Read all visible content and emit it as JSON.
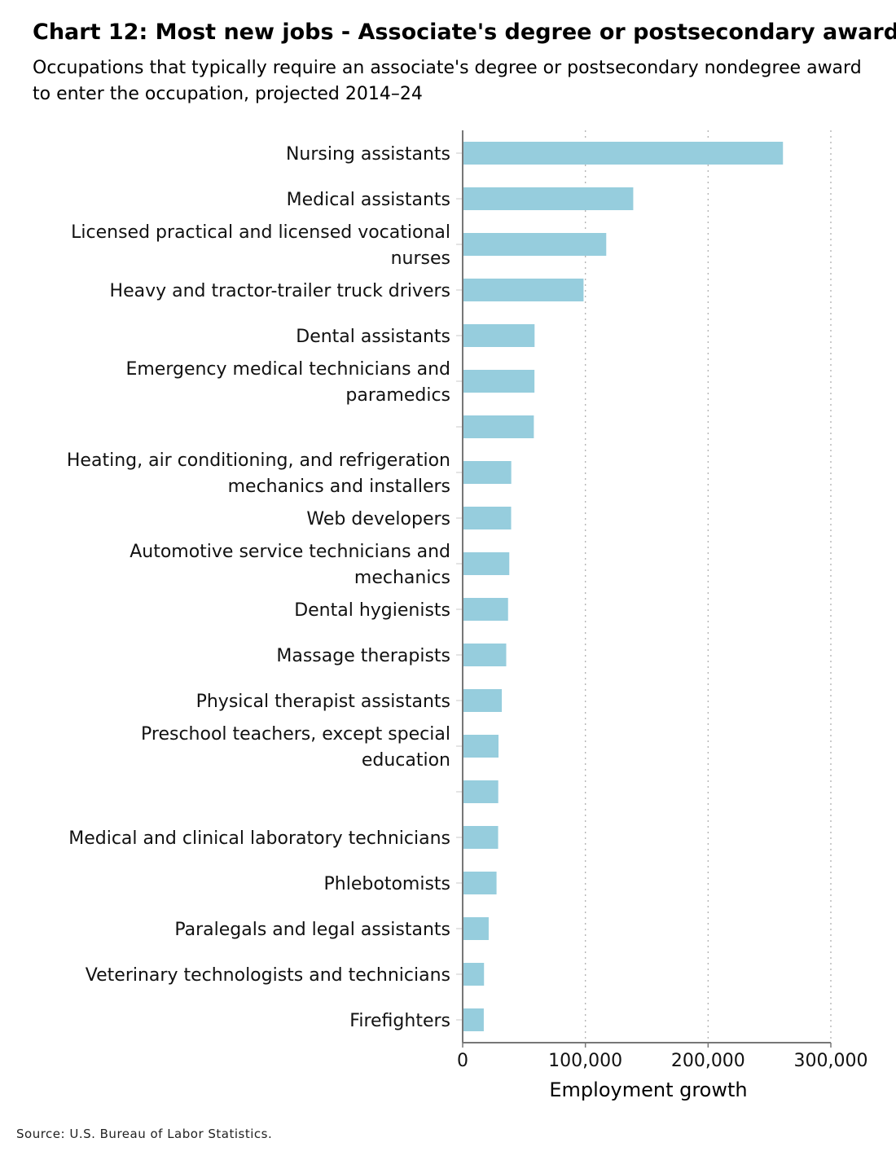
{
  "header": {
    "title": "Chart 12: Most new jobs - Associate's degree or postsecondary award",
    "subtitle": "Occupations that typically require an associate's degree or postsecondary nondegree award to enter the occupation, projected 2014–24"
  },
  "footer": {
    "source": "Source: U.S. Bureau of Labor Statistics."
  },
  "chart_data": {
    "type": "bar",
    "orientation": "horizontal",
    "title": "Chart 12: Most new jobs - Associate's degree or postsecondary award",
    "subtitle": "Occupations that typically require an associate's degree or postsecondary nondegree award to enter the occupation, projected 2014–24",
    "xlabel": "Employment growth",
    "ylabel": "",
    "xlim": [
      0,
      300000
    ],
    "x_ticks": [
      "0",
      "100,000",
      "200,000",
      "300,000"
    ],
    "x_tick_values": [
      0,
      100000,
      200000,
      300000
    ],
    "grid": "vertical dotted",
    "bar_color": "#96cddd",
    "categories": [
      [
        "Nursing assistants"
      ],
      [
        "Medical assistants"
      ],
      [
        "Licensed practical and licensed vocational",
        "nurses"
      ],
      [
        "Heavy and tractor-trailer truck drivers"
      ],
      [
        "Dental assistants"
      ],
      [
        "Emergency medical technicians and",
        "paramedics"
      ],
      [],
      [
        "Heating, air conditioning, and refrigeration",
        "mechanics and installers"
      ],
      [
        "Web developers"
      ],
      [
        "Automotive service technicians and",
        "mechanics"
      ],
      [
        "Dental hygienists"
      ],
      [
        "Massage therapists"
      ],
      [
        "Physical therapist assistants"
      ],
      [
        "Preschool teachers, except special",
        "education"
      ],
      [],
      [
        "Medical and clinical laboratory technicians"
      ],
      [
        "Phlebotomists"
      ],
      [
        "Paralegals and legal assistants"
      ],
      [
        "Veterinary technologists and technicians"
      ],
      [
        "Firefighters"
      ]
    ],
    "values": [
      261000,
      139000,
      117000,
      98500,
      58600,
      58500,
      58000,
      39600,
      39500,
      38000,
      37000,
      35500,
      31900,
      29200,
      29000,
      28900,
      27600,
      21200,
      17400,
      17200
    ]
  }
}
